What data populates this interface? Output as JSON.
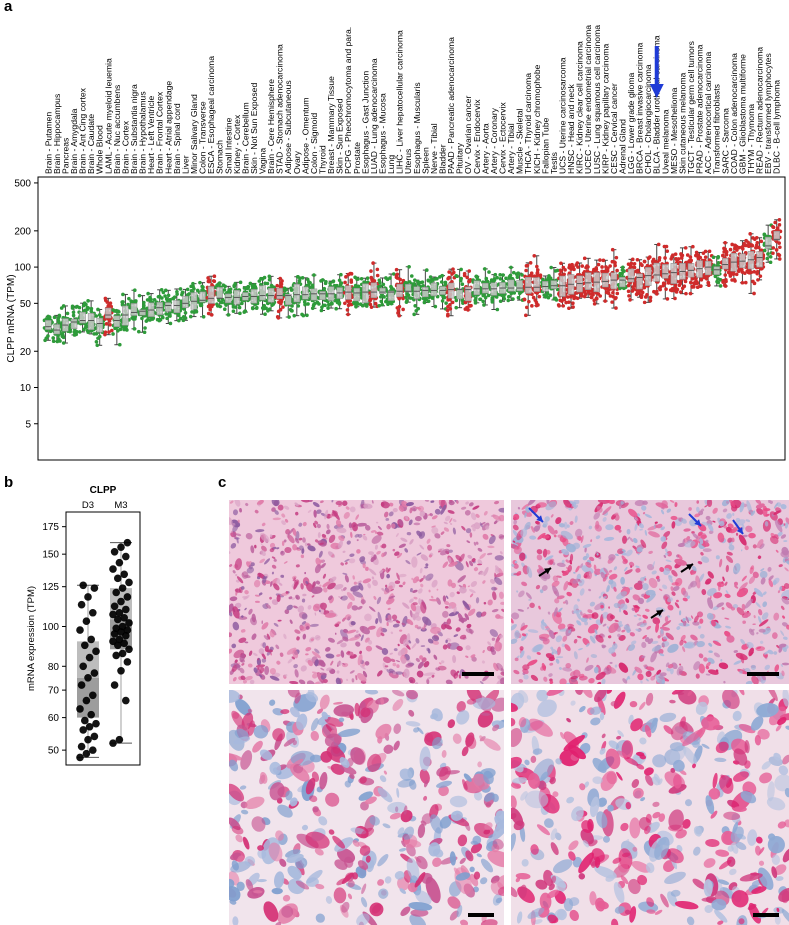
{
  "panels": {
    "a": {
      "letter": "a"
    },
    "b": {
      "letter": "b"
    },
    "c": {
      "letter": "c"
    }
  },
  "colors": {
    "green": "#2e9b3a",
    "red": "#cf2b2b",
    "blue_arrow": "#1f3bd6",
    "box_fill": "#c9c9c9",
    "he_pink": "#e3a6c6",
    "he_magenta": "#d6266c",
    "he_blue": "#8aa6cf"
  },
  "chart_data": [
    {
      "type": "scatter",
      "title": "",
      "xlabel": "",
      "ylabel": "CLPP mRNA (TPM)",
      "y_scale": "log",
      "yticks": [
        5,
        10,
        20,
        50,
        100,
        200,
        500
      ],
      "ylim": [
        2.5,
        560
      ],
      "legend": "none",
      "marked_category": "BLCA - Bladder urothelial carcinoma",
      "categories": [
        "Brain - Putamen",
        "Brain - Hippocampus",
        "Pancreas",
        "Brain - Amygdala",
        "Brain - Ant Cing cortex",
        "Brain - Caudate",
        "Whole Blood",
        "LAML - Acute myeloid leuemia",
        "Brain - Nuc accumbens",
        "Brain - Cortex",
        "Brain - Substantia nigra",
        "Brain - Hypothalamus",
        "Heart - Left Ventricle",
        "Brain - Frontal Cortex",
        "Heart - Atrial appendage",
        "Brain - Spinal cord",
        "Liver",
        "Minor Salivary Gland",
        "Colon - Transverse",
        "ESCA - Esophageal carcinoma",
        "Stomach",
        "Small Intestine",
        "Kidney - Cortex",
        "Brain - Cerebellum",
        "Skin - Not Sun Exposed",
        "Vagina",
        "Brain - Cere Hemisphere",
        "STAD - Stomach adenocarcinoma",
        "Adipose - Subcutaneous",
        "Ovary",
        "Adipose - Omentum",
        "Colon - Sigmoid",
        "Thyroid",
        "Breast - Mammary Tissue",
        "Skin - Sun Exposed",
        "PCPG - Pheochromocytoma and para.",
        "Prostate",
        "Esophagus - Gast Junction",
        "LUAD - Lung adenocarcinoma",
        "Esophagus - Mucosa",
        "Lung",
        "LIHC - Liver hepatocellular carcinoma",
        "Uterus",
        "Esophagus - Muscularis",
        "Spleen",
        "Nerve - Tibial",
        "Bladder",
        "PAAD - Pancreatic adenocarcinoma",
        "Pituitary",
        "OV - Ovarian cancer",
        "Cervix - Endocervix",
        "Artery - Aorta",
        "Artery - Coronary",
        "Cervix - Ectocervix",
        "Artery - Tibial",
        "Muscle - Skeletal",
        "THCA - Thyroid carcinoma",
        "KICH - Kidney chromophobe",
        "Fallopian Tube",
        "Testis",
        "UCS - Uterine carcinosarcoma",
        "HNSC - Head and neck",
        "KIRC - Kidney clear cell carcinoma",
        "UCEC - Uterine endometrial carcinoma",
        "LUSC - Lung squamous cell carcinoma",
        "KIRP - Kidney papillary carcinoma",
        "CESC - Cervical cancer",
        "Adrenal Gland",
        "LGG - Lower grade glioma",
        "BRCA - Breast invasive carcinoma",
        "CHOL - Cholangiocarcinoma",
        "BLCA - Bladder urothelial carcinoma",
        "Uveal melanoma",
        "MESO - Mesothelioma",
        "Skin cutaneous melanoma",
        "TGCT - Testicular germ cell tumors",
        "PRAD - Prostate adenocarcinoma",
        "ACC - Adrenocortical carcinoma",
        "Transformed fibroblasts",
        "SARC - Sarcoma",
        "COAD - Colon adenocarcinoma",
        "GBM - Glioblastoma multiforme",
        "THYM - Thymoma",
        "READ - Rectum adenocarcinoma",
        "EBV - transformed lymphocytes",
        "DLBC - B-cell lymphoma"
      ],
      "category_is_tumor": [
        0,
        0,
        0,
        0,
        0,
        0,
        0,
        1,
        0,
        0,
        0,
        0,
        0,
        0,
        0,
        0,
        0,
        0,
        0,
        1,
        0,
        0,
        0,
        0,
        0,
        0,
        0,
        1,
        0,
        0,
        0,
        0,
        0,
        0,
        0,
        1,
        0,
        0,
        1,
        0,
        0,
        1,
        0,
        0,
        0,
        0,
        0,
        1,
        0,
        1,
        0,
        0,
        0,
        0,
        0,
        0,
        1,
        1,
        0,
        0,
        1,
        1,
        1,
        1,
        1,
        1,
        1,
        0,
        1,
        1,
        1,
        1,
        1,
        1,
        1,
        1,
        1,
        1,
        0,
        1,
        1,
        1,
        1,
        1,
        0,
        1
      ],
      "medians": [
        32,
        30,
        33,
        35,
        36,
        36,
        34,
        40,
        36,
        40,
        42,
        43,
        44,
        46,
        48,
        48,
        50,
        52,
        53,
        55,
        55,
        56,
        56,
        57,
        57,
        58,
        58,
        58,
        58,
        59,
        59,
        60,
        60,
        60,
        61,
        62,
        61,
        62,
        62,
        62,
        62,
        63,
        63,
        63,
        64,
        64,
        64,
        65,
        65,
        65,
        66,
        66,
        66,
        67,
        67,
        67,
        68,
        68,
        69,
        70,
        70,
        72,
        73,
        74,
        75,
        76,
        78,
        78,
        80,
        82,
        85,
        86,
        88,
        90,
        92,
        94,
        97,
        100,
        95,
        105,
        110,
        112,
        115,
        120,
        150,
        170
      ]
    },
    {
      "type": "box",
      "title": "CLPP",
      "xlabel": "",
      "ylabel": "mRNA expression (TPM)",
      "y_scale": "log",
      "yticks": [
        50,
        60,
        70,
        80,
        100,
        125,
        150,
        175
      ],
      "ylim": [
        46,
        190
      ],
      "categories": [
        "D3",
        "M3"
      ],
      "series": [
        {
          "name": "D3",
          "box": {
            "min": 48,
            "q1": 60,
            "median": 75,
            "q3": 92,
            "max": 126
          },
          "points": [
            48,
            49,
            50,
            51,
            53,
            54,
            56,
            57,
            58,
            59,
            61,
            63,
            66,
            68,
            72,
            75,
            77,
            80,
            84,
            87,
            90,
            93,
            98,
            103,
            108,
            113,
            118,
            124,
            126
          ]
        },
        {
          "name": "M3",
          "box": {
            "min": 52,
            "q1": 88,
            "median": 104,
            "q3": 124,
            "max": 160
          },
          "points": [
            52,
            53,
            66,
            72,
            78,
            82,
            85,
            86,
            88,
            90,
            91,
            92,
            93,
            95,
            96,
            97,
            98,
            99,
            100,
            102,
            104,
            105,
            107,
            108,
            110,
            112,
            115,
            118,
            121,
            124,
            128,
            131,
            134,
            138,
            143,
            148,
            152,
            156,
            160
          ]
        }
      ]
    }
  ],
  "panel_c": {
    "images": [
      {
        "label": "c-top-left",
        "tissue": "stained section, low magnification",
        "has_arrows": false
      },
      {
        "label": "c-top-right",
        "tissue": "stained section with blue and black arrows",
        "has_arrows": true
      },
      {
        "label": "c-bottom-left",
        "tissue": "stained section, high magnification",
        "has_arrows": false
      },
      {
        "label": "c-bottom-right",
        "tissue": "stained section, high magnification",
        "has_arrows": false
      }
    ]
  }
}
